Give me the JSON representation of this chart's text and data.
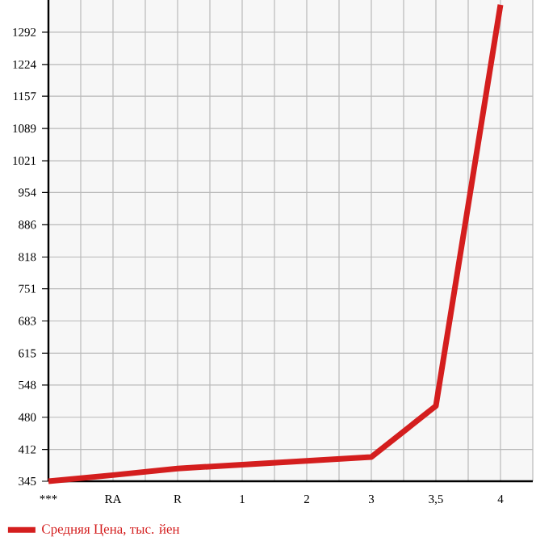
{
  "chart_data": {
    "type": "line",
    "categories": [
      "***",
      "RA",
      "R",
      "1",
      "2",
      "3",
      "3,5",
      "4"
    ],
    "series": [
      {
        "name": "Средняя Цена, тыс. йен",
        "color": "#d41e1e",
        "values": [
          345,
          358,
          372,
          380,
          388,
          396,
          504,
          1350
        ]
      }
    ],
    "ylim": [
      345,
      1360
    ],
    "yticks": [
      345,
      412,
      480,
      548,
      615,
      683,
      751,
      818,
      886,
      954,
      1021,
      1089,
      1157,
      1224,
      1292
    ],
    "grid": true,
    "legend": "bottom left",
    "marker": "none",
    "line_style": "solid"
  }
}
